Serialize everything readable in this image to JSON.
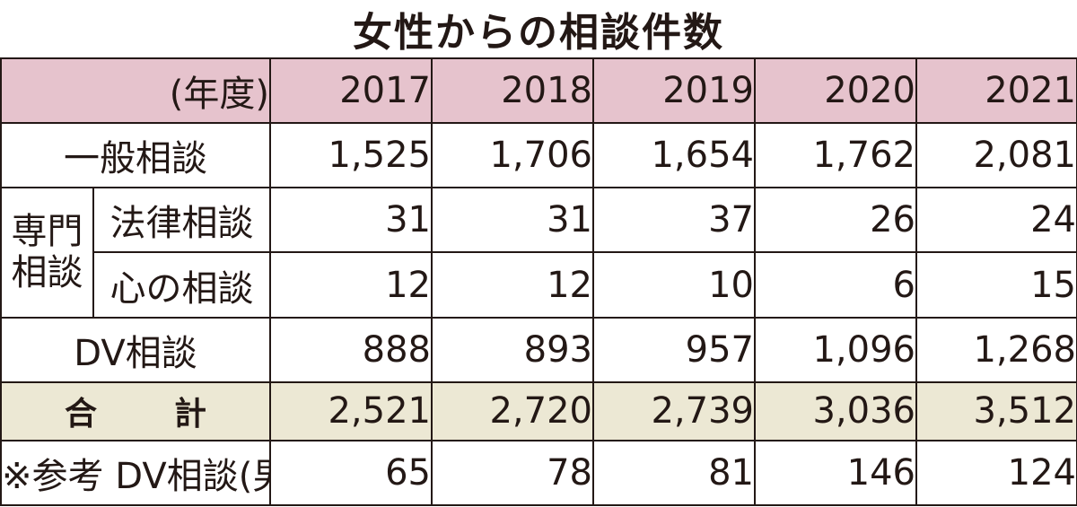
{
  "title": "女性からの相談件数",
  "chart_data": {
    "type": "table",
    "title": "女性からの相談件数",
    "header_label": "(年度)",
    "columns": [
      "2017",
      "2018",
      "2019",
      "2020",
      "2021"
    ],
    "rows": {
      "general": {
        "label": "一般相談",
        "values": [
          "1,525",
          "1,706",
          "1,654",
          "1,762",
          "2,081"
        ]
      },
      "specialist_group": "専門\n相談",
      "legal": {
        "label": "法律相談",
        "values": [
          "31",
          "31",
          "37",
          "26",
          "24"
        ]
      },
      "mental": {
        "label": "心の相談",
        "values": [
          "12",
          "12",
          "10",
          "6",
          "15"
        ]
      },
      "dv": {
        "label": "DV相談",
        "values": [
          "888",
          "893",
          "957",
          "1,096",
          "1,268"
        ]
      },
      "total": {
        "label_left": "合",
        "label_right": "計",
        "values": [
          "2,521",
          "2,720",
          "2,739",
          "3,036",
          "3,512"
        ]
      },
      "dv_male": {
        "label": "※参考 DV相談(男性)",
        "values": [
          "65",
          "78",
          "81",
          "146",
          "124"
        ]
      }
    }
  },
  "colors": {
    "header_bg": "#e6c3cd",
    "total_bg": "#ece8d4",
    "line": "#231815"
  }
}
